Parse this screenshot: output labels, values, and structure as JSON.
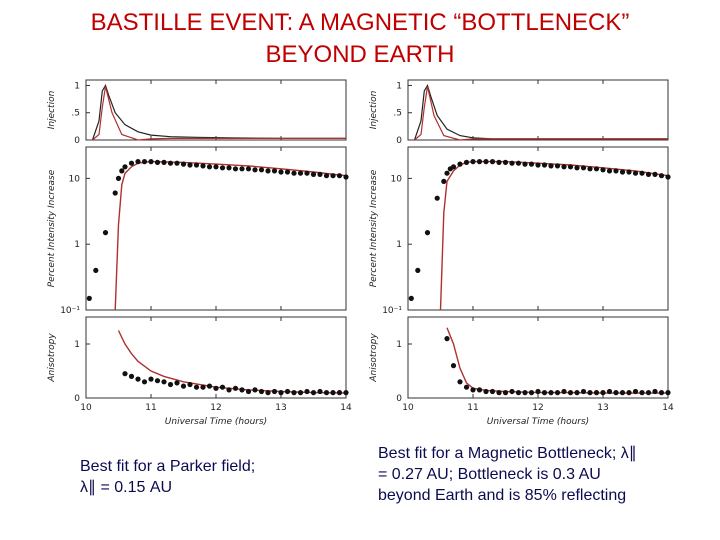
{
  "title_line1": "BASTILLE EVENT: A MAGNETIC “BOTTLENECK”",
  "title_line2": "BEYOND EARTH",
  "captions": {
    "left_line1": "Best fit for a Parker field;",
    "left_line2": "λ∥ = 0.15 AU",
    "right_line1": "Best fit for a Magnetic Bottleneck; λ∥",
    "right_line2": "= 0.27 AU; Bottleneck is 0.3 AU",
    "right_line3": "beyond Earth and is 85% reflecting"
  },
  "colors": {
    "title": "#c00000",
    "caption": "#0b0b50",
    "fit_line": "#b03030",
    "data": "#111111"
  },
  "chart_data": [
    {
      "type": "line",
      "panel": "left",
      "xlabel": "Universal Time (hours)",
      "x_ticks": [
        "10",
        "11",
        "12",
        "13",
        "14"
      ],
      "xlim": [
        10,
        14
      ],
      "subplots": [
        {
          "name": "injection",
          "ylabel": "Injection",
          "y_ticks": [
            "0",
            ".5",
            "1"
          ],
          "ylim": [
            0,
            1.1
          ],
          "series": [
            {
              "x": [
                10.1,
                10.2,
                10.25,
                10.3,
                10.35,
                10.45,
                10.6,
                10.8,
                11.0,
                11.3,
                11.7,
                12.2,
                13,
                14
              ],
              "values": [
                0,
                0.35,
                0.9,
                1.0,
                0.82,
                0.5,
                0.28,
                0.15,
                0.09,
                0.06,
                0.05,
                0.04,
                0.03,
                0.03
              ]
            },
            {
              "x": [
                10.1,
                10.2,
                10.25,
                10.3,
                10.4,
                10.55,
                10.8,
                11.0,
                11.3,
                11.8,
                12.5,
                13.5,
                14
              ],
              "values": [
                0,
                0.1,
                0.6,
                0.98,
                0.5,
                0.1,
                0.0,
                0.02,
                0.03,
                0.03,
                0.03,
                0.03,
                0.03
              ]
            }
          ]
        },
        {
          "name": "intensity",
          "ylabel": "Percent Intensity Increase",
          "y_ticks": [
            "10⁻¹",
            "1",
            "10"
          ],
          "scale": "log",
          "ylim": [
            0.1,
            30
          ],
          "fit": {
            "x": [
              10.45,
              10.5,
              10.55,
              10.6,
              10.7,
              10.8,
              11.0,
              11.5,
              12.0,
              12.5,
              13.0,
              13.5,
              14.0
            ],
            "values": [
              0.1,
              2,
              8,
              12,
              15,
              17,
              18,
              17.5,
              16.5,
              15.5,
              14,
              12.5,
              11
            ]
          },
          "points": {
            "x": [
              10.05,
              10.15,
              10.3,
              10.45,
              10.5,
              10.55,
              10.6,
              10.7,
              10.8,
              10.9,
              11.0,
              11.1,
              11.2,
              11.3,
              11.4,
              11.5,
              11.6,
              11.7,
              11.8,
              11.9,
              12.0,
              12.1,
              12.2,
              12.3,
              12.4,
              12.5,
              12.6,
              12.7,
              12.8,
              12.9,
              13.0,
              13.1,
              13.2,
              13.3,
              13.4,
              13.5,
              13.6,
              13.7,
              13.8,
              13.9,
              14.0
            ],
            "values": [
              0.15,
              0.4,
              1.5,
              6,
              10,
              13,
              15,
              17,
              18,
              18,
              18,
              17.5,
              17.5,
              17,
              17,
              16.5,
              16,
              16,
              15.5,
              15,
              15,
              14.5,
              14.5,
              14,
              14,
              14,
              13.5,
              13.5,
              13,
              13,
              12.5,
              12.5,
              12,
              12,
              12,
              11.5,
              11.5,
              11,
              11,
              11,
              10.5
            ]
          }
        },
        {
          "name": "anisotropy",
          "ylabel": "Anisotropy",
          "y_ticks": [
            "0",
            "1"
          ],
          "ylim": [
            0,
            1.5
          ],
          "fit": {
            "x": [
              10.5,
              10.6,
              10.7,
              10.8,
              11.0,
              11.2,
              11.5,
              12.0,
              12.5,
              13.0,
              13.5,
              14.0
            ],
            "values": [
              1.25,
              1.0,
              0.82,
              0.68,
              0.5,
              0.4,
              0.3,
              0.2,
              0.15,
              0.12,
              0.1,
              0.09
            ]
          },
          "points": {
            "x": [
              10.6,
              10.7,
              10.8,
              10.9,
              11.0,
              11.1,
              11.2,
              11.3,
              11.4,
              11.5,
              11.6,
              11.7,
              11.8,
              11.9,
              12.0,
              12.1,
              12.2,
              12.3,
              12.4,
              12.5,
              12.6,
              12.7,
              12.8,
              12.9,
              13.0,
              13.1,
              13.2,
              13.3,
              13.4,
              13.5,
              13.6,
              13.7,
              13.8,
              13.9,
              14.0
            ],
            "values": [
              0.45,
              0.4,
              0.35,
              0.3,
              0.35,
              0.32,
              0.3,
              0.25,
              0.28,
              0.22,
              0.25,
              0.2,
              0.2,
              0.22,
              0.18,
              0.2,
              0.15,
              0.18,
              0.15,
              0.12,
              0.15,
              0.12,
              0.1,
              0.12,
              0.1,
              0.12,
              0.1,
              0.1,
              0.12,
              0.1,
              0.12,
              0.1,
              0.1,
              0.1,
              0.1
            ]
          }
        }
      ]
    },
    {
      "type": "line",
      "panel": "right",
      "xlabel": "Universal Time (hours)",
      "x_ticks": [
        "10",
        "11",
        "12",
        "13",
        "14"
      ],
      "xlim": [
        10,
        14
      ],
      "subplots": [
        {
          "name": "injection",
          "ylabel": "Injection",
          "y_ticks": [
            "0",
            ".5",
            "1"
          ],
          "ylim": [
            0,
            1.1
          ],
          "series": [
            {
              "x": [
                10.1,
                10.2,
                10.25,
                10.3,
                10.35,
                10.45,
                10.6,
                10.8,
                11.0,
                11.3,
                11.7,
                12.2,
                13,
                14
              ],
              "values": [
                0,
                0.35,
                0.9,
                1.0,
                0.8,
                0.45,
                0.2,
                0.08,
                0.04,
                0.02,
                0.02,
                0.02,
                0.02,
                0.02
              ]
            },
            {
              "x": [
                10.1,
                10.2,
                10.25,
                10.3,
                10.4,
                10.55,
                10.8,
                11.0,
                11.3,
                11.8,
                12.5,
                13.5,
                14
              ],
              "values": [
                0,
                0.1,
                0.6,
                0.98,
                0.45,
                0.08,
                0.0,
                0.02,
                0.02,
                0.02,
                0.02,
                0.02,
                0.02
              ]
            }
          ]
        },
        {
          "name": "intensity",
          "ylabel": "Percent Intensity Increase",
          "y_ticks": [
            "10⁻¹",
            "1",
            "10"
          ],
          "scale": "log",
          "ylim": [
            0.1,
            30
          ],
          "fit": {
            "x": [
              10.5,
              10.55,
              10.6,
              10.7,
              10.8,
              10.9,
              11.0,
              11.5,
              12.0,
              12.5,
              13.0,
              13.5,
              14.0
            ],
            "values": [
              0.1,
              3,
              9,
              13,
              16,
              17.5,
              18,
              18,
              17,
              16,
              14.5,
              13,
              11
            ]
          },
          "points": {
            "x": [
              10.05,
              10.15,
              10.3,
              10.45,
              10.55,
              10.6,
              10.65,
              10.7,
              10.8,
              10.9,
              11.0,
              11.1,
              11.2,
              11.3,
              11.4,
              11.5,
              11.6,
              11.7,
              11.8,
              11.9,
              12.0,
              12.1,
              12.2,
              12.3,
              12.4,
              12.5,
              12.6,
              12.7,
              12.8,
              12.9,
              13.0,
              13.1,
              13.2,
              13.3,
              13.4,
              13.5,
              13.6,
              13.7,
              13.8,
              13.9,
              14.0
            ],
            "values": [
              0.15,
              0.4,
              1.5,
              5,
              9,
              12,
              14,
              15,
              16.5,
              17.5,
              18,
              18,
              18,
              18,
              17.5,
              17.5,
              17,
              17,
              16.5,
              16.5,
              16,
              16,
              15.5,
              15.5,
              15,
              15,
              14.5,
              14.5,
              14,
              14,
              13.5,
              13,
              13,
              12.5,
              12.5,
              12,
              12,
              11.5,
              11.5,
              11,
              10.5
            ]
          }
        },
        {
          "name": "anisotropy",
          "ylabel": "Anisotropy",
          "y_ticks": [
            "0",
            "1"
          ],
          "ylim": [
            0,
            1.5
          ],
          "fit": {
            "x": [
              10.6,
              10.7,
              10.8,
              10.9,
              11.0,
              11.2,
              11.5,
              12.0,
              12.5,
              13.0,
              13.5,
              14.0
            ],
            "values": [
              1.3,
              1.0,
              0.55,
              0.28,
              0.18,
              0.14,
              0.12,
              0.1,
              0.1,
              0.09,
              0.09,
              0.09
            ]
          },
          "points": {
            "x": [
              10.6,
              10.7,
              10.8,
              10.9,
              11.0,
              11.1,
              11.2,
              11.3,
              11.4,
              11.5,
              11.6,
              11.7,
              11.8,
              11.9,
              12.0,
              12.1,
              12.2,
              12.3,
              12.4,
              12.5,
              12.6,
              12.7,
              12.8,
              12.9,
              13.0,
              13.1,
              13.2,
              13.3,
              13.4,
              13.5,
              13.6,
              13.7,
              13.8,
              13.9,
              14.0
            ],
            "values": [
              1.1,
              0.6,
              0.3,
              0.2,
              0.15,
              0.15,
              0.12,
              0.12,
              0.1,
              0.1,
              0.12,
              0.1,
              0.1,
              0.1,
              0.12,
              0.1,
              0.1,
              0.1,
              0.12,
              0.1,
              0.1,
              0.12,
              0.1,
              0.1,
              0.1,
              0.12,
              0.1,
              0.1,
              0.1,
              0.12,
              0.1,
              0.1,
              0.12,
              0.1,
              0.1
            ]
          }
        }
      ]
    }
  ]
}
